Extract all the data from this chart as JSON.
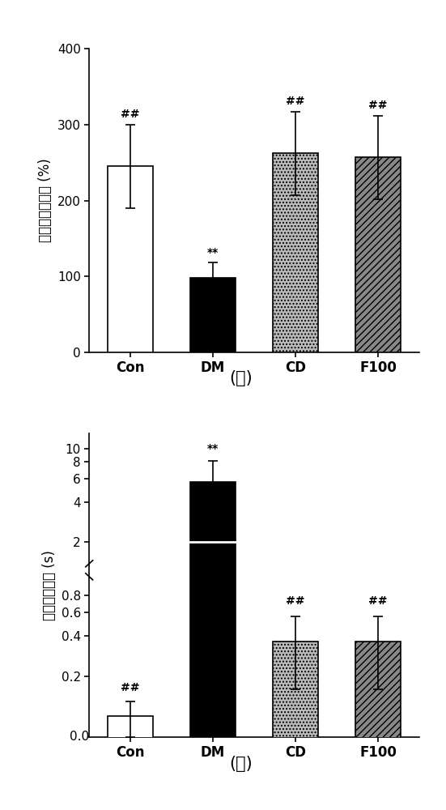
{
  "panel_A": {
    "categories": [
      "Con",
      "DM",
      "CD",
      "F100"
    ],
    "values": [
      245,
      98,
      262,
      257
    ],
    "errors": [
      55,
      20,
      55,
      55
    ],
    "ylabel": "血流变化百分比 (%)",
    "ylim": [
      0,
      400
    ],
    "yticks": [
      0,
      100,
      200,
      300,
      400
    ],
    "annotations": [
      "##",
      "**",
      "##",
      "##"
    ],
    "label": "(ａ)"
  },
  "panel_B": {
    "categories": [
      "Con",
      "DM",
      "CD",
      "F100"
    ],
    "values": [
      0.1,
      5.6,
      0.36,
      0.36
    ],
    "errors": [
      0.03,
      2.5,
      0.2,
      0.2
    ],
    "median_DM": 2.0,
    "ylabel": "血流恢复时间 (s)",
    "yticks_log": [
      0.2,
      0.4,
      0.6,
      0.8,
      2,
      4,
      6,
      8,
      10
    ],
    "ytick_labels": [
      "0.2",
      "0.4",
      "0.6",
      "0.8",
      "2",
      "4",
      "6",
      "8",
      "10"
    ],
    "annotations": [
      "##",
      "**",
      "##",
      "##"
    ],
    "label": "(Ｂ)"
  },
  "background_color": "#ffffff",
  "tick_fontsize": 11,
  "label_fontsize": 12,
  "annot_fontsize": 10,
  "caption_fontsize": 15,
  "bar_width": 0.55
}
